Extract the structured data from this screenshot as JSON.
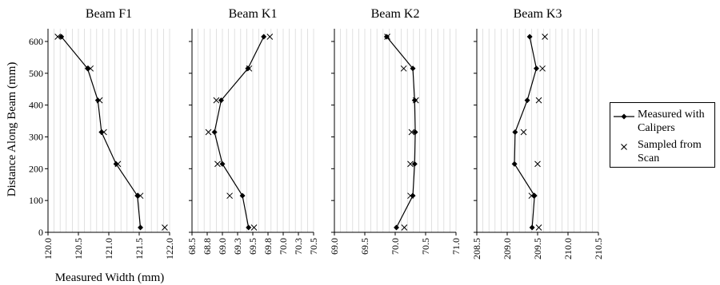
{
  "chart_data": {
    "type": "line",
    "ylabel": "Distance Along Beam (mm)",
    "xlabel": "Measured Width (mm)",
    "y_ticks": [
      0,
      100,
      200,
      300,
      400,
      500,
      600
    ],
    "ylim": [
      0,
      640
    ],
    "grid": "vertical",
    "legend_placement": "right",
    "legend": {
      "calipers": "Measured with Calipers",
      "scan": "Sampled from Scan"
    },
    "colors": {
      "line": "#000000",
      "grid": "#d9d9d9"
    },
    "panels": [
      {
        "title": "Beam F1",
        "xlim": [
          120.0,
          122.0
        ],
        "x_ticks": [
          "120.0",
          "120.5",
          "121.0",
          "121.5",
          "122.0"
        ],
        "series": [
          {
            "name": "Measured with Calipers",
            "marker": "diamond",
            "points": [
              [
                121.52,
                15
              ],
              [
                121.47,
                115
              ],
              [
                121.12,
                215
              ],
              [
                120.88,
                315
              ],
              [
                120.82,
                415
              ],
              [
                120.65,
                515
              ],
              [
                120.22,
                615
              ]
            ]
          },
          {
            "name": "Sampled from Scan",
            "marker": "cross",
            "points": [
              [
                121.92,
                15
              ],
              [
                121.52,
                115
              ],
              [
                121.15,
                215
              ],
              [
                120.92,
                315
              ],
              [
                120.85,
                415
              ],
              [
                120.7,
                515
              ],
              [
                120.16,
                615
              ]
            ]
          }
        ]
      },
      {
        "title": "Beam K1",
        "xlim": [
          68.5,
          70.5
        ],
        "x_ticks": [
          "68.5",
          "68.8",
          "69.0",
          "69.3",
          "69.5",
          "69.8",
          "70.0",
          "70.3",
          "70.5"
        ],
        "series": [
          {
            "name": "Measured with Calipers",
            "marker": "diamond",
            "points": [
              [
                69.43,
                15
              ],
              [
                69.33,
                115
              ],
              [
                69.0,
                215
              ],
              [
                68.87,
                315
              ],
              [
                68.98,
                415
              ],
              [
                69.42,
                515
              ],
              [
                69.68,
                615
              ]
            ]
          },
          {
            "name": "Sampled from Scan",
            "marker": "cross",
            "points": [
              [
                69.52,
                15
              ],
              [
                69.12,
                115
              ],
              [
                68.92,
                215
              ],
              [
                68.77,
                315
              ],
              [
                68.9,
                415
              ],
              [
                69.44,
                515
              ],
              [
                69.78,
                615
              ]
            ]
          }
        ]
      },
      {
        "title": "Beam K2",
        "xlim": [
          69.0,
          71.0
        ],
        "x_ticks": [
          "69.0",
          "69.5",
          "70.0",
          "70.5",
          "71.0"
        ],
        "series": [
          {
            "name": "Measured with Calipers",
            "marker": "diamond",
            "points": [
              [
                70.02,
                15
              ],
              [
                70.29,
                115
              ],
              [
                70.32,
                215
              ],
              [
                70.33,
                315
              ],
              [
                70.32,
                415
              ],
              [
                70.29,
                515
              ],
              [
                69.86,
                615
              ]
            ]
          },
          {
            "name": "Sampled from Scan",
            "marker": "cross",
            "points": [
              [
                70.15,
                15
              ],
              [
                70.25,
                115
              ],
              [
                70.25,
                215
              ],
              [
                70.27,
                315
              ],
              [
                70.34,
                415
              ],
              [
                70.14,
                515
              ],
              [
                69.87,
                615
              ]
            ]
          }
        ]
      },
      {
        "title": "Beam K3",
        "xlim": [
          208.5,
          210.5
        ],
        "x_ticks": [
          "208.5",
          "209.0",
          "209.5",
          "210.0",
          "210.5"
        ],
        "series": [
          {
            "name": "Measured with Calipers",
            "marker": "diamond",
            "points": [
              [
                209.41,
                15
              ],
              [
                209.45,
                115
              ],
              [
                209.12,
                215
              ],
              [
                209.13,
                315
              ],
              [
                209.33,
                415
              ],
              [
                209.48,
                515
              ],
              [
                209.37,
                615
              ]
            ]
          },
          {
            "name": "Sampled from Scan",
            "marker": "cross",
            "points": [
              [
                209.52,
                15
              ],
              [
                209.4,
                115
              ],
              [
                209.5,
                215
              ],
              [
                209.27,
                315
              ],
              [
                209.52,
                415
              ],
              [
                209.58,
                515
              ],
              [
                209.62,
                615
              ]
            ]
          }
        ]
      }
    ]
  }
}
